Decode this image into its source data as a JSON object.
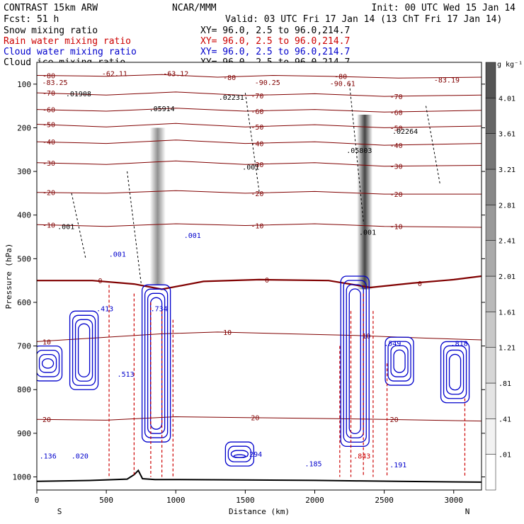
{
  "header": {
    "model": "CONTRAST 15km ARW",
    "institution": "NCAR/MMM",
    "init": "Init: 00 UTC Wed 15 Jan 14",
    "fcst": "Fcst:   51 h",
    "valid": "Valid: 03 UTC Fri 17 Jan 14 (13 ChT Fri 17 Jan 14)"
  },
  "legend": [
    {
      "label": "Snow mixing ratio",
      "xy": "XY=  96.0,  2.5 to  96.0,214.7",
      "color": "#000000"
    },
    {
      "label": "Rain water mixing ratio",
      "xy": "XY=  96.0,  2.5 to  96.0,214.7",
      "color": "#cc0000"
    },
    {
      "label": "Cloud water mixing ratio",
      "xy": "XY=  96.0,  2.5 to  96.0,214.7",
      "color": "#0000cc"
    },
    {
      "label": "Cloud ice mixing ratio",
      "xy": "XY=  96.0,  2.5 to  96.0,214.7",
      "color": "#000000"
    }
  ],
  "chart_data": {
    "type": "heatmap",
    "title": "CONTRAST 15km ARW",
    "xlabel": "Distance (km)",
    "ylabel": "Pressure (hPa)",
    "xlim": [
      0,
      3200
    ],
    "ylim": [
      1030,
      50
    ],
    "x_ticks": [
      0,
      500,
      1000,
      1500,
      2000,
      2500,
      3000
    ],
    "y_ticks": [
      100,
      200,
      300,
      400,
      500,
      600,
      700,
      800,
      900,
      1000
    ],
    "x_end_labels": {
      "left": "S",
      "right": "N"
    },
    "colorbar": {
      "unit": "g kg⁻¹",
      "levels": [
        ".01",
        ".41",
        ".81",
        "1.21",
        "1.61",
        "2.01",
        "2.41",
        "2.81",
        "3.21",
        "3.61",
        "4.01"
      ],
      "colors": [
        "#ffffff",
        "#f2f2f2",
        "#e4e4e4",
        "#d6d6d6",
        "#c8c8c8",
        "#b9b9b9",
        "#aaaaaa",
        "#999999",
        "#888888",
        "#777777",
        "#666666",
        "#555555"
      ]
    },
    "snow_columns": [
      {
        "x": 870,
        "p_top": 200,
        "p_bottom": 560,
        "peak": 2.5
      },
      {
        "x": 2360,
        "p_top": 170,
        "p_bottom": 570,
        "peak": 4.2
      }
    ],
    "temperature_contours": [
      {
        "value": "-80",
        "color": "#800000",
        "points": [
          [
            0,
            80
          ],
          [
            500,
            82
          ],
          [
            900,
            78
          ],
          [
            1300,
            84
          ],
          [
            1700,
            80
          ],
          [
            2100,
            82
          ],
          [
            2600,
            86
          ],
          [
            3200,
            84
          ]
        ]
      },
      {
        "value": "-70",
        "color": "#800000",
        "points": [
          [
            0,
            120
          ],
          [
            500,
            125
          ],
          [
            1000,
            118
          ],
          [
            1500,
            126
          ],
          [
            2000,
            122
          ],
          [
            2500,
            128
          ],
          [
            3200,
            125
          ]
        ]
      },
      {
        "value": "-60",
        "color": "#800000",
        "points": [
          [
            0,
            158
          ],
          [
            500,
            162
          ],
          [
            1000,
            155
          ],
          [
            1500,
            162
          ],
          [
            2000,
            158
          ],
          [
            2500,
            164
          ],
          [
            3200,
            160
          ]
        ]
      },
      {
        "value": "-50",
        "color": "#800000",
        "points": [
          [
            0,
            192
          ],
          [
            500,
            198
          ],
          [
            1000,
            190
          ],
          [
            1500,
            198
          ],
          [
            2000,
            193
          ],
          [
            2500,
            200
          ],
          [
            3200,
            196
          ]
        ]
      },
      {
        "value": "-40",
        "color": "#800000",
        "points": [
          [
            0,
            232
          ],
          [
            500,
            236
          ],
          [
            1000,
            228
          ],
          [
            1500,
            236
          ],
          [
            2000,
            232
          ],
          [
            2500,
            240
          ],
          [
            3200,
            236
          ]
        ]
      },
      {
        "value": "-30",
        "color": "#800000",
        "points": [
          [
            0,
            280
          ],
          [
            500,
            284
          ],
          [
            1000,
            276
          ],
          [
            1500,
            284
          ],
          [
            2000,
            280
          ],
          [
            2500,
            288
          ],
          [
            3200,
            286
          ]
        ]
      },
      {
        "value": "-20",
        "color": "#800000",
        "points": [
          [
            0,
            348
          ],
          [
            500,
            350
          ],
          [
            1000,
            344
          ],
          [
            1500,
            350
          ],
          [
            2000,
            346
          ],
          [
            2500,
            352
          ],
          [
            3200,
            352
          ]
        ]
      },
      {
        "value": "-10",
        "color": "#800000",
        "points": [
          [
            0,
            422
          ],
          [
            500,
            426
          ],
          [
            1000,
            420
          ],
          [
            1500,
            424
          ],
          [
            2000,
            420
          ],
          [
            2500,
            426
          ],
          [
            3200,
            428
          ]
        ]
      },
      {
        "value": "0",
        "color": "#800000",
        "points": [
          [
            0,
            550
          ],
          [
            400,
            550
          ],
          [
            700,
            558
          ],
          [
            900,
            570
          ],
          [
            1200,
            552
          ],
          [
            1600,
            548
          ],
          [
            2100,
            550
          ],
          [
            2400,
            566
          ],
          [
            2700,
            556
          ],
          [
            3000,
            548
          ],
          [
            3200,
            540
          ]
        ]
      },
      {
        "value": "10",
        "color": "#800000",
        "points": [
          [
            0,
            690
          ],
          [
            500,
            680
          ],
          [
            900,
            672
          ],
          [
            1300,
            668
          ],
          [
            1800,
            672
          ],
          [
            2300,
            676
          ],
          [
            2800,
            682
          ],
          [
            3200,
            686
          ]
        ]
      },
      {
        "value": "20",
        "color": "#800000",
        "points": [
          [
            0,
            868
          ],
          [
            500,
            870
          ],
          [
            1000,
            862
          ],
          [
            1500,
            864
          ],
          [
            2000,
            866
          ],
          [
            2500,
            868
          ],
          [
            3200,
            872
          ]
        ]
      }
    ],
    "text_labels": [
      {
        "text": "-62.11",
        "x": 560,
        "p": 82,
        "color": "#800000"
      },
      {
        "text": "-63.12",
        "x": 1000,
        "p": 82,
        "color": "#800000"
      },
      {
        "text": "-83.25",
        "x": 130,
        "p": 102,
        "color": "#800000"
      },
      {
        "text": "-90.25",
        "x": 1660,
        "p": 102,
        "color": "#800000"
      },
      {
        "text": "-90.61",
        "x": 2200,
        "p": 104,
        "color": "#800000"
      },
      {
        "text": "-83.19",
        "x": 2950,
        "p": 96,
        "color": "#800000"
      },
      {
        "text": ".01908",
        "x": 300,
        "p": 128,
        "color": "#000000"
      },
      {
        "text": ".05914",
        "x": 900,
        "p": 162,
        "color": "#000000"
      },
      {
        "text": ".02231",
        "x": 1400,
        "p": 136,
        "color": "#000000"
      },
      {
        "text": ".02264",
        "x": 2650,
        "p": 214,
        "color": "#000000"
      },
      {
        "text": ".05803",
        "x": 2320,
        "p": 258,
        "color": "#000000"
      },
      {
        "text": ".413",
        "x": 490,
        "p": 620,
        "color": "#0000cc"
      },
      {
        "text": ".734",
        "x": 880,
        "p": 620,
        "color": "#0000cc"
      },
      {
        "text": ".513",
        "x": 640,
        "p": 770,
        "color": "#0000cc"
      },
      {
        "text": ".136",
        "x": 80,
        "p": 958,
        "color": "#0000cc"
      },
      {
        "text": ".020",
        "x": 310,
        "p": 958,
        "color": "#0000cc"
      },
      {
        "text": ".294",
        "x": 1560,
        "p": 954,
        "color": "#0000cc"
      },
      {
        "text": ".185",
        "x": 1990,
        "p": 976,
        "color": "#0000cc"
      },
      {
        "text": ".191",
        "x": 2600,
        "p": 978,
        "color": "#0000cc"
      },
      {
        "text": ".549",
        "x": 2560,
        "p": 700,
        "color": "#0000cc"
      },
      {
        "text": ".818",
        "x": 3040,
        "p": 700,
        "color": "#0000cc"
      },
      {
        "text": ".001",
        "x": 210,
        "p": 432,
        "color": "#000000"
      },
      {
        "text": ".001",
        "x": 580,
        "p": 495,
        "color": "#0000cc"
      },
      {
        "text": ".001",
        "x": 1120,
        "p": 452,
        "color": "#0000cc"
      },
      {
        "text": ".001",
        "x": 2380,
        "p": 445,
        "color": "#000000"
      },
      {
        "text": ".001",
        "x": 1540,
        "p": 296,
        "color": "#000000"
      },
      {
        "text": ".843",
        "x": 2340,
        "p": 958,
        "color": "#cc0000"
      }
    ]
  }
}
